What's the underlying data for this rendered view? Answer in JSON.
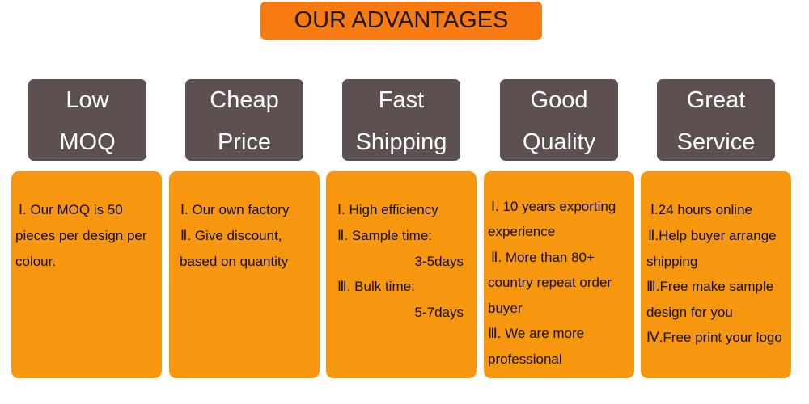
{
  "title": "OUR ADVANTAGES",
  "colors": {
    "title_bg": "#f97a10",
    "header_bg": "#5c5150",
    "card_bg": "#f7960f"
  },
  "headers": [
    {
      "line1": "Low",
      "line2": "MOQ"
    },
    {
      "line1": "Cheap",
      "line2": "Price"
    },
    {
      "line1": "Fast",
      "line2": "Shipping"
    },
    {
      "line1": "Good",
      "line2": "Quality"
    },
    {
      "line1": "Great",
      "line2": "Service"
    }
  ],
  "cards": [
    {
      "lines": [
        "Ⅰ. Our MOQ is 50",
        "pieces per design per",
        "colour."
      ]
    },
    {
      "lines": [
        "Ⅰ. Our own factory",
        "Ⅱ. Give discount,",
        "based on quantity"
      ]
    },
    {
      "lines": [
        "Ⅰ. High efficiency",
        "Ⅱ. Sample time:",
        "3-5days",
        "Ⅲ. Bulk time:",
        "5-7days"
      ]
    },
    {
      "lines": [
        "Ⅰ. 10 years exporting",
        "experience",
        "Ⅱ. More than 80+",
        "country repeat order",
        "buyer",
        "Ⅲ. We are more",
        "professional"
      ]
    },
    {
      "lines": [
        "Ⅰ.24 hours online",
        "Ⅱ.Help buyer arrange",
        "shipping",
        "Ⅲ.Free make sample",
        "design for you",
        "Ⅳ.Free print your logo"
      ]
    }
  ]
}
